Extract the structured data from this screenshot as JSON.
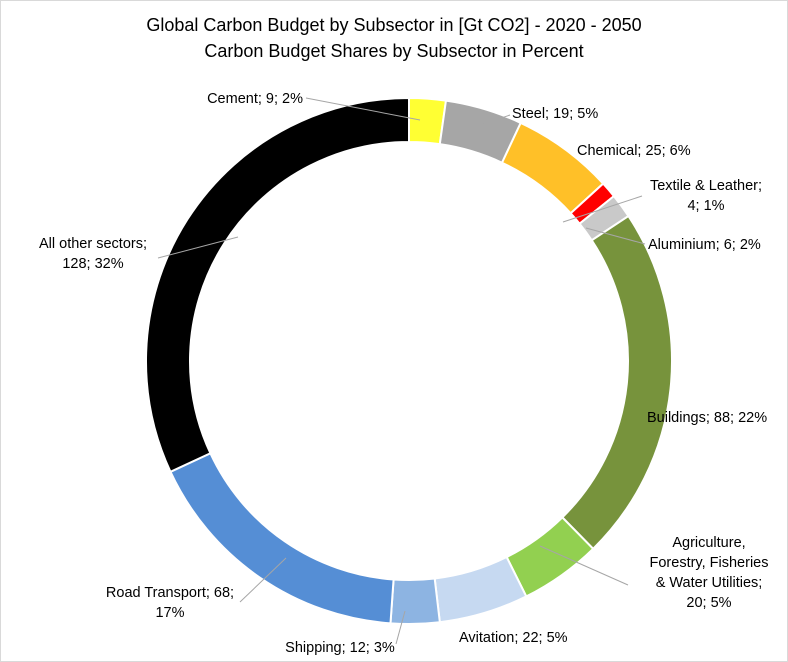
{
  "chart_data": {
    "type": "pie",
    "style": "doughnut",
    "title": "Global Carbon Budget by Subsector in [Gt CO2] - 2020 - 2050",
    "subtitle": "Carbon Budget Shares by Subsector in Percent",
    "slices": [
      {
        "name": "Cement",
        "value": 9,
        "percent": "2%",
        "color": "#ffff33",
        "label_lines": [
          "Cement; 9; 2%"
        ]
      },
      {
        "name": "Steel",
        "value": 19,
        "percent": "5%",
        "color": "#a6a6a6",
        "label_lines": [
          "Steel; 19; 5%"
        ]
      },
      {
        "name": "Chemical",
        "value": 25,
        "percent": "6%",
        "color": "#ffc028",
        "label_lines": [
          "Chemical; 25; 6%"
        ]
      },
      {
        "name": "Textile & Leather",
        "value": 4,
        "percent": "1%",
        "color": "#ff0000",
        "label_lines": [
          "Textile & Leather;",
          "4; 1%"
        ]
      },
      {
        "name": "Aluminium",
        "value": 6,
        "percent": "2%",
        "color": "#c9c9c9",
        "label_lines": [
          "Aluminium; 6; 2%"
        ]
      },
      {
        "name": "Buildings",
        "value": 88,
        "percent": "22%",
        "color": "#77933c",
        "label_lines": [
          "Buildings; 88; 22%"
        ]
      },
      {
        "name": "Agriculture, Forestry, Fisheries & Water Utilities",
        "value": 20,
        "percent": "5%",
        "color": "#92d050",
        "label_lines": [
          "Agriculture,",
          "Forestry, Fisheries",
          "& Water Utilities;",
          "20; 5%"
        ]
      },
      {
        "name": "Avitation",
        "value": 22,
        "percent": "5%",
        "color": "#c6d9f1",
        "label_lines": [
          "Avitation; 22; 5%"
        ]
      },
      {
        "name": "Shipping",
        "value": 12,
        "percent": "3%",
        "color": "#8db4e2",
        "label_lines": [
          "Shipping; 12; 3%"
        ]
      },
      {
        "name": "Road Transport",
        "value": 68,
        "percent": "17%",
        "color": "#558ed5",
        "label_lines": [
          "Road Transport; 68;",
          "17%"
        ]
      },
      {
        "name": "All other sectors",
        "value": 128,
        "percent": "32%",
        "color": "#000000",
        "label_lines": [
          "All other sectors;",
          "128; 32%"
        ]
      }
    ]
  }
}
